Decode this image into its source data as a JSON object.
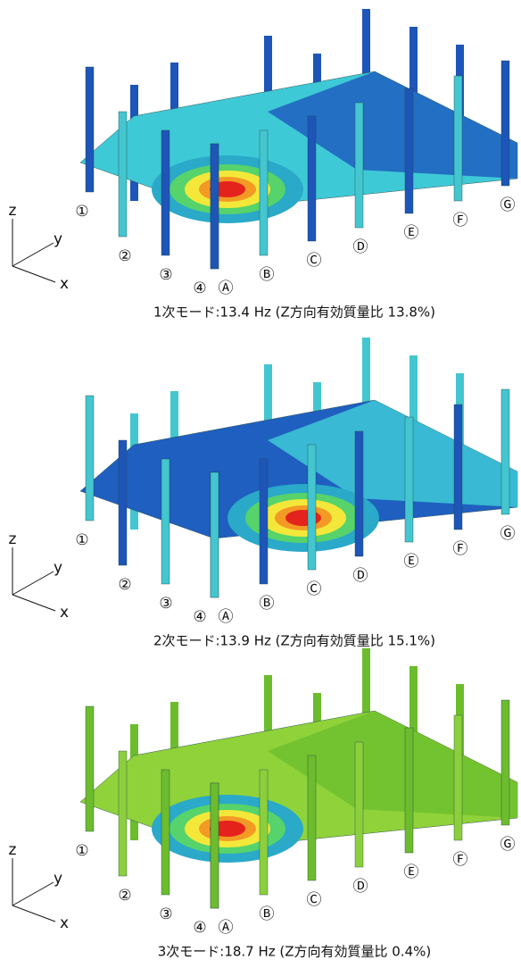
{
  "axes": {
    "z": "z",
    "y": "y",
    "x": "x"
  },
  "grid_labels": [
    "①",
    "②",
    "③",
    "④",
    "Ⓐ",
    "Ⓑ",
    "Ⓒ",
    "Ⓓ",
    "Ⓔ",
    "Ⓕ",
    "Ⓖ"
  ],
  "panels": [
    {
      "caption": "1次モード:13.4 Hz (Z方向有効質量比 13.8%)"
    },
    {
      "caption": "2次モード:13.9 Hz (Z方向有効質量比 15.1%)"
    },
    {
      "caption": "3次モード:18.7 Hz (Z方向有効質量比 0.4%)"
    }
  ]
}
